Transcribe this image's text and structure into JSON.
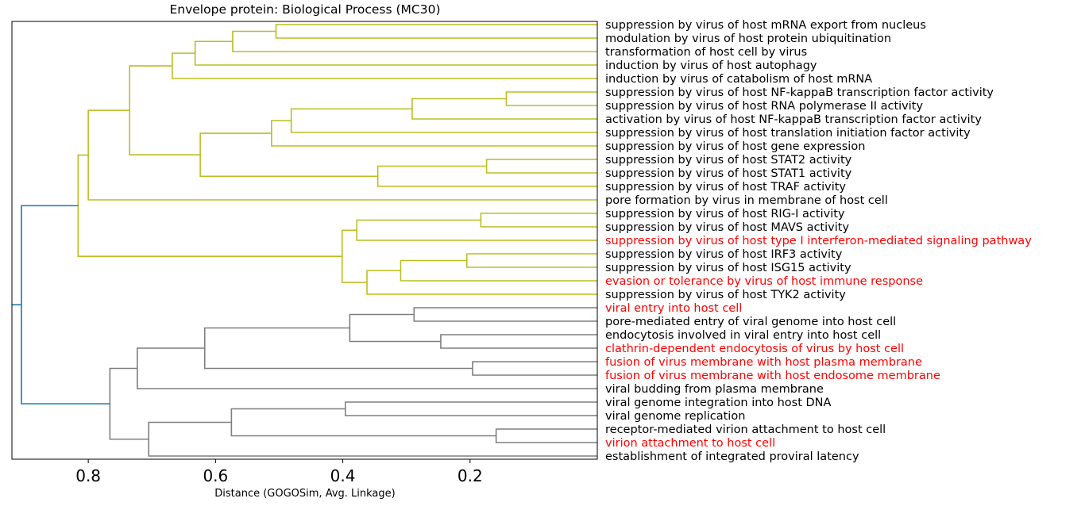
{
  "chart_data": {
    "type": "dendrogram",
    "title": "Envelope protein: Biological Process (MC30)",
    "xlabel": "Distance (GOGOSim, Avg. Linkage)",
    "xlim": [
      0.92,
      0.0
    ],
    "xticks": [
      0.8,
      0.6,
      0.4,
      0.2
    ],
    "xtick_labels": [
      "0.8",
      "0.6",
      "0.4",
      "0.2"
    ],
    "colors": {
      "cluster_a": "#bcbd22",
      "cluster_b": "#7f7f7f",
      "root": "#1f77b4",
      "highlight_label": "#ff0000",
      "label": "#000000"
    },
    "leaves": [
      {
        "label": "suppression by virus of host mRNA export from nucleus",
        "highlight": false
      },
      {
        "label": "modulation by virus of host protein ubiquitination",
        "highlight": false
      },
      {
        "label": "transformation of host cell by virus",
        "highlight": false
      },
      {
        "label": "induction by virus of host autophagy",
        "highlight": false
      },
      {
        "label": "induction by virus of catabolism of host mRNA",
        "highlight": false
      },
      {
        "label": "suppression by virus of host NF-kappaB transcription factor activity",
        "highlight": false
      },
      {
        "label": "suppression by virus of host RNA polymerase II activity",
        "highlight": false
      },
      {
        "label": "activation by virus of host NF-kappaB transcription factor activity",
        "highlight": false
      },
      {
        "label": "suppression by virus of host translation initiation factor activity",
        "highlight": false
      },
      {
        "label": "suppression by virus of host gene expression",
        "highlight": false
      },
      {
        "label": "suppression by virus of host STAT2 activity",
        "highlight": false
      },
      {
        "label": "suppression by virus of host STAT1 activity",
        "highlight": false
      },
      {
        "label": "suppression by virus of host TRAF activity",
        "highlight": false
      },
      {
        "label": "pore formation by virus in membrane of host cell",
        "highlight": false
      },
      {
        "label": "suppression by virus of host RIG-I activity",
        "highlight": false
      },
      {
        "label": "suppression by virus of host MAVS activity",
        "highlight": false
      },
      {
        "label": "suppression by virus of host type I interferon-mediated signaling pathway",
        "highlight": true
      },
      {
        "label": "suppression by virus of host IRF3 activity",
        "highlight": false
      },
      {
        "label": "suppression by virus of host ISG15 activity",
        "highlight": false
      },
      {
        "label": "evasion or tolerance by virus of host immune response",
        "highlight": true
      },
      {
        "label": "suppression by virus of host TYK2 activity",
        "highlight": false
      },
      {
        "label": "viral entry into host cell",
        "highlight": true
      },
      {
        "label": "pore-mediated entry of viral genome into host cell",
        "highlight": false
      },
      {
        "label": "endocytosis involved in viral entry into host cell",
        "highlight": false
      },
      {
        "label": "clathrin-dependent endocytosis of virus by host cell",
        "highlight": true
      },
      {
        "label": "fusion of virus membrane with host plasma membrane",
        "highlight": true
      },
      {
        "label": "fusion of virus membrane with host endosome membrane",
        "highlight": true
      },
      {
        "label": "viral budding from plasma membrane",
        "highlight": false
      },
      {
        "label": "viral genome integration into host DNA",
        "highlight": false
      },
      {
        "label": "viral genome replication",
        "highlight": false
      },
      {
        "label": "receptor-mediated virion attachment to host cell",
        "highlight": false
      },
      {
        "label": "virion attachment to host cell",
        "highlight": true
      },
      {
        "label": "establishment of integrated proviral latency",
        "highlight": false
      }
    ],
    "merges": [
      {
        "id": "m1",
        "children": [
          "L0",
          "L1"
        ],
        "height": 0.505,
        "cluster": "cluster_a"
      },
      {
        "id": "m2",
        "children": [
          "m1",
          "L2"
        ],
        "height": 0.573,
        "cluster": "cluster_a"
      },
      {
        "id": "m3",
        "children": [
          "m2",
          "L3"
        ],
        "height": 0.632,
        "cluster": "cluster_a"
      },
      {
        "id": "m4",
        "children": [
          "m3",
          "L4"
        ],
        "height": 0.668,
        "cluster": "cluster_a"
      },
      {
        "id": "m5",
        "children": [
          "L5",
          "L6"
        ],
        "height": 0.143,
        "cluster": "cluster_a"
      },
      {
        "id": "m6",
        "children": [
          "m5",
          "L7"
        ],
        "height": 0.291,
        "cluster": "cluster_a"
      },
      {
        "id": "m7",
        "children": [
          "m6",
          "L8"
        ],
        "height": 0.481,
        "cluster": "cluster_a"
      },
      {
        "id": "m8",
        "children": [
          "m7",
          "L9"
        ],
        "height": 0.512,
        "cluster": "cluster_a"
      },
      {
        "id": "m9",
        "children": [
          "L10",
          "L11"
        ],
        "height": 0.174,
        "cluster": "cluster_a"
      },
      {
        "id": "m10",
        "children": [
          "m9",
          "L12"
        ],
        "height": 0.345,
        "cluster": "cluster_a"
      },
      {
        "id": "m11",
        "children": [
          "m8",
          "m10"
        ],
        "height": 0.624,
        "cluster": "cluster_a"
      },
      {
        "id": "m12",
        "children": [
          "m4",
          "m11"
        ],
        "height": 0.735,
        "cluster": "cluster_a"
      },
      {
        "id": "m13",
        "children": [
          "m12",
          "L13"
        ],
        "height": 0.8,
        "cluster": "cluster_a"
      },
      {
        "id": "m14",
        "children": [
          "L14",
          "L15"
        ],
        "height": 0.183,
        "cluster": "cluster_a"
      },
      {
        "id": "m15",
        "children": [
          "m14",
          "L16"
        ],
        "height": 0.378,
        "cluster": "cluster_a"
      },
      {
        "id": "m16",
        "children": [
          "L17",
          "L18"
        ],
        "height": 0.205,
        "cluster": "cluster_a"
      },
      {
        "id": "m17",
        "children": [
          "m16",
          "L19"
        ],
        "height": 0.309,
        "cluster": "cluster_a"
      },
      {
        "id": "m18",
        "children": [
          "m17",
          "L20"
        ],
        "height": 0.362,
        "cluster": "cluster_a"
      },
      {
        "id": "m19",
        "children": [
          "m15",
          "m18"
        ],
        "height": 0.401,
        "cluster": "cluster_a"
      },
      {
        "id": "m20",
        "children": [
          "m13",
          "m19"
        ],
        "height": 0.816,
        "cluster": "cluster_a"
      },
      {
        "id": "m21",
        "children": [
          "L21",
          "L22"
        ],
        "height": 0.288,
        "cluster": "cluster_b"
      },
      {
        "id": "m22",
        "children": [
          "L23",
          "L24"
        ],
        "height": 0.246,
        "cluster": "cluster_b"
      },
      {
        "id": "m23",
        "children": [
          "m21",
          "m22"
        ],
        "height": 0.389,
        "cluster": "cluster_b"
      },
      {
        "id": "m24",
        "children": [
          "L25",
          "L26"
        ],
        "height": 0.196,
        "cluster": "cluster_b"
      },
      {
        "id": "m25",
        "children": [
          "m23",
          "m24"
        ],
        "height": 0.617,
        "cluster": "cluster_b"
      },
      {
        "id": "m26",
        "children": [
          "m25",
          "L27"
        ],
        "height": 0.723,
        "cluster": "cluster_b"
      },
      {
        "id": "m27",
        "children": [
          "L28",
          "L29"
        ],
        "height": 0.396,
        "cluster": "cluster_b"
      },
      {
        "id": "m28",
        "children": [
          "L30",
          "L31"
        ],
        "height": 0.159,
        "cluster": "cluster_b"
      },
      {
        "id": "m29",
        "children": [
          "m27",
          "m28"
        ],
        "height": 0.575,
        "cluster": "cluster_b"
      },
      {
        "id": "m30",
        "children": [
          "m29",
          "L32"
        ],
        "height": 0.705,
        "cluster": "cluster_b"
      },
      {
        "id": "m31",
        "children": [
          "m26",
          "m30"
        ],
        "height": 0.766,
        "cluster": "cluster_b"
      },
      {
        "id": "m32",
        "children": [
          "m20",
          "m31"
        ],
        "height": 0.905,
        "cluster": "root"
      }
    ]
  }
}
